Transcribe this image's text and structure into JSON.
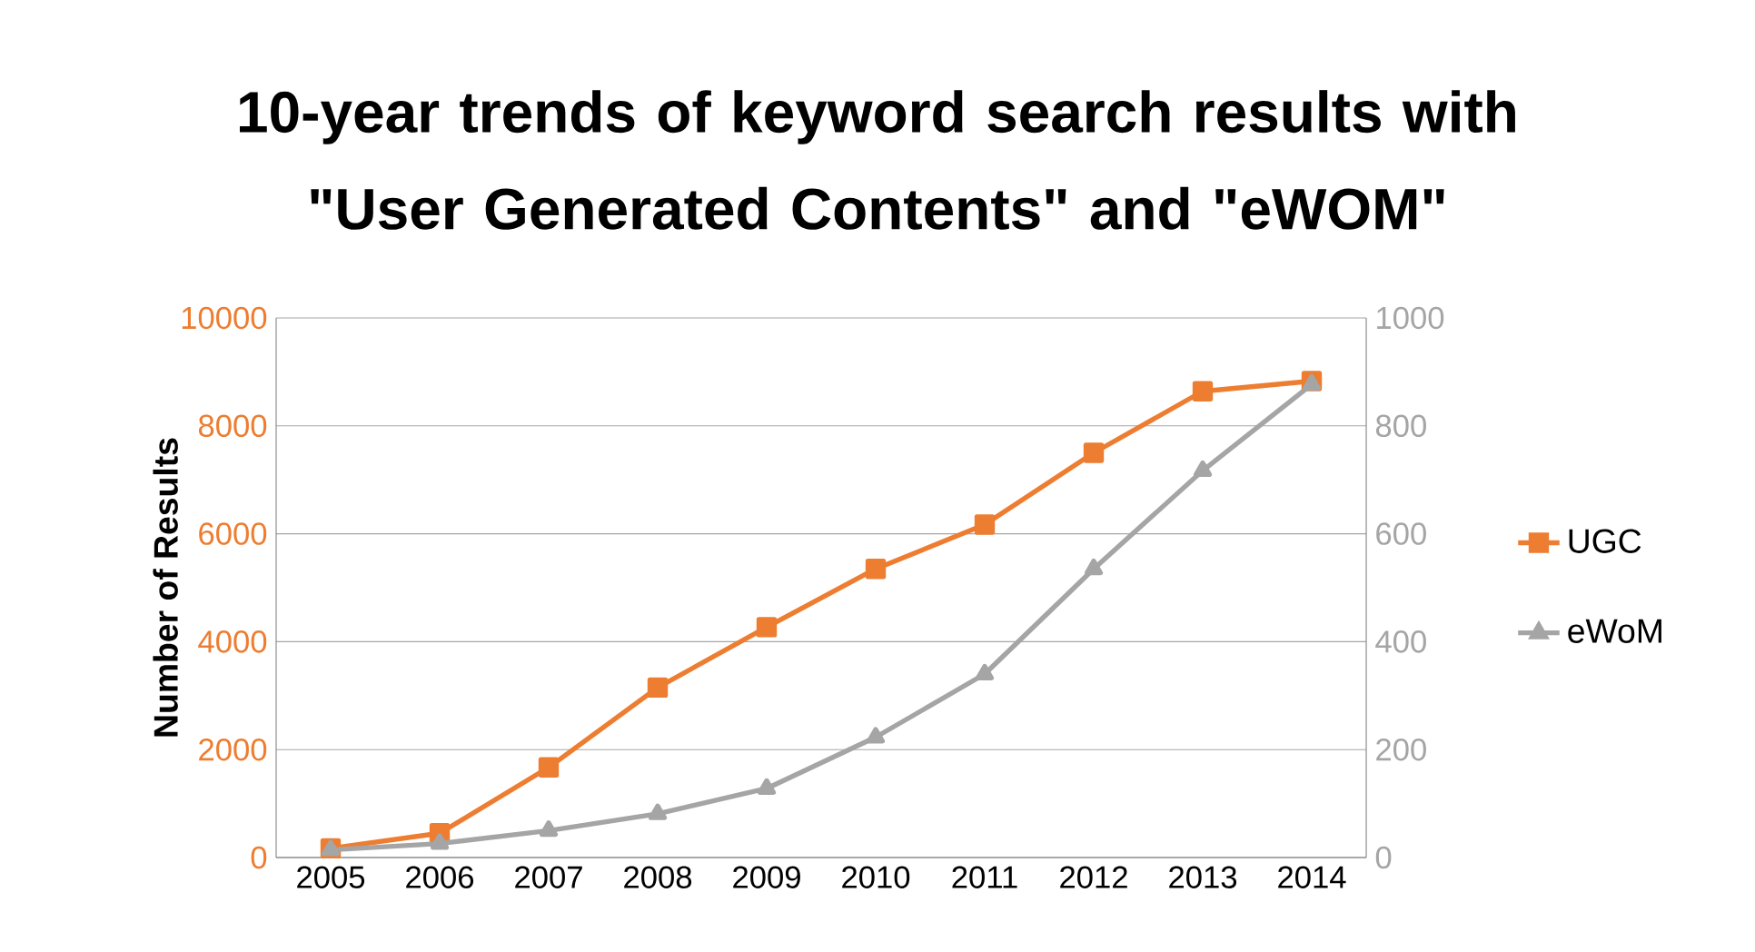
{
  "chart_data": {
    "type": "line",
    "title": "10-year trends of keyword search results with \"User Generated Contents\" and \"eWOM\"",
    "ylabel": "Number of Results",
    "categories": [
      "2005",
      "2006",
      "2007",
      "2008",
      "2009",
      "2010",
      "2011",
      "2012",
      "2013",
      "2014"
    ],
    "series": [
      {
        "name": "UGC",
        "color": "#ed7d31",
        "marker": "square",
        "values": [
          170,
          450,
          1670,
          3150,
          4270,
          5350,
          6170,
          7500,
          8640,
          8830
        ]
      },
      {
        "name": "eWoM",
        "color": "#a5a5a5",
        "marker": "triangle",
        "axis": "y2",
        "values": [
          14,
          26,
          50,
          81,
          128,
          223,
          340,
          535,
          717,
          877
        ]
      }
    ],
    "ylim": [
      0,
      10000
    ],
    "yticks": [
      0,
      2000,
      4000,
      6000,
      8000,
      10000
    ],
    "y2lim": [
      0,
      1000
    ],
    "y2ticks": [
      0,
      200,
      400,
      600,
      800,
      1000
    ],
    "grid": "y",
    "legend": "right",
    "line_style": "solid"
  }
}
